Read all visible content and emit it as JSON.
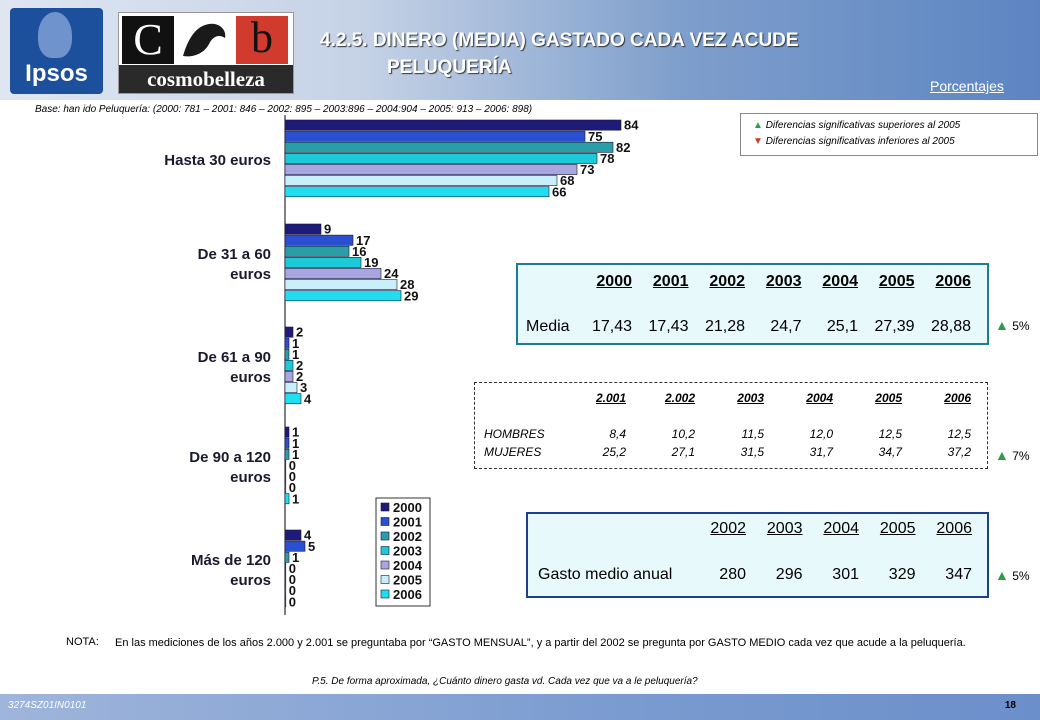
{
  "header": {
    "logo_ipsos": "Ipsos",
    "logo_cb_c": "C",
    "logo_cb_b": "b",
    "logo_cosmo": "cosmobelleza",
    "title_line1": "4.2.5. DINERO (MEDIA) GASTADO CADA VEZ ACUDE",
    "title_line2": "PELUQUERÍA",
    "porcentajes": "Porcentajes"
  },
  "base": "Base: han ido Peluquería: (2000: 781 – 2001: 846 – 2002: 895 – 2003:896 – 2004:904 – 2005: 913 – 2006: 898)",
  "significance_legend": {
    "up": "Diferencias significativas superiores al 2005",
    "down": "Diferencias significativas inferiores al 2005"
  },
  "colors": {
    "2000": "#1e1b78",
    "2001": "#2a4fd1",
    "2002": "#2a9ea6",
    "2003": "#1cc9d6",
    "2004": "#a8a6df",
    "2005": "#c9effa",
    "2006": "#20ddf0"
  },
  "chart_data": {
    "type": "bar",
    "orientation": "horizontal",
    "categories": [
      "Hasta 30 euros",
      "De 31 a 60 euros",
      "De 61 a 90 euros",
      "De 90 a 120 euros",
      "Más de 120 euros"
    ],
    "series": [
      {
        "name": "2000",
        "values": [
          84,
          9,
          2,
          1,
          4
        ]
      },
      {
        "name": "2001",
        "values": [
          75,
          17,
          1,
          1,
          5
        ]
      },
      {
        "name": "2002",
        "values": [
          82,
          16,
          1,
          1,
          1
        ]
      },
      {
        "name": "2003",
        "values": [
          78,
          19,
          2,
          0,
          0
        ]
      },
      {
        "name": "2004",
        "values": [
          73,
          24,
          2,
          0,
          0
        ]
      },
      {
        "name": "2005",
        "values": [
          68,
          28,
          3,
          0,
          0
        ]
      },
      {
        "name": "2006",
        "values": [
          66,
          29,
          4,
          1,
          0
        ]
      }
    ],
    "xlim": [
      0,
      100
    ],
    "grid": false,
    "legend_placement": "bottom-right"
  },
  "media_table": {
    "years": [
      "2000",
      "2001",
      "2002",
      "2003",
      "2004",
      "2005",
      "2006"
    ],
    "row_label": "Media",
    "values": [
      "17,43",
      "17,43",
      "21,28",
      "24,7",
      "25,1",
      "27,39",
      "28,88"
    ],
    "sig": "5%"
  },
  "gender_table": {
    "years": [
      "2.001",
      "2.002",
      "2003",
      "2004",
      "2005",
      "2006"
    ],
    "rows": [
      {
        "label": "HOMBRES",
        "values": [
          "8,4",
          "10,2",
          "11,5",
          "12,0",
          "12,5",
          "12,5"
        ]
      },
      {
        "label": "MUJERES",
        "values": [
          "25,2",
          "27,1",
          "31,5",
          "31,7",
          "34,7",
          "37,2"
        ]
      }
    ],
    "sig": "7%"
  },
  "annual_table": {
    "years": [
      "2002",
      "2003",
      "2004",
      "2005",
      "2006"
    ],
    "row_label": "Gasto medio anual",
    "values": [
      "280",
      "296",
      "301",
      "329",
      "347"
    ],
    "sig": "5%"
  },
  "nota": {
    "label": "NOTA:",
    "text": "En las mediciones de los años 2.000 y 2.001 se preguntaba por “GASTO MENSUAL”, y a partir del 2002 se pregunta por GASTO MEDIO cada vez que acude a la peluquería."
  },
  "question": "P.5.  De forma aproximada, ¿Cuánto dinero gasta vd. Cada vez que va a le peluquería?",
  "footer": {
    "code": "3274SZ01IN0101",
    "page": "18"
  }
}
